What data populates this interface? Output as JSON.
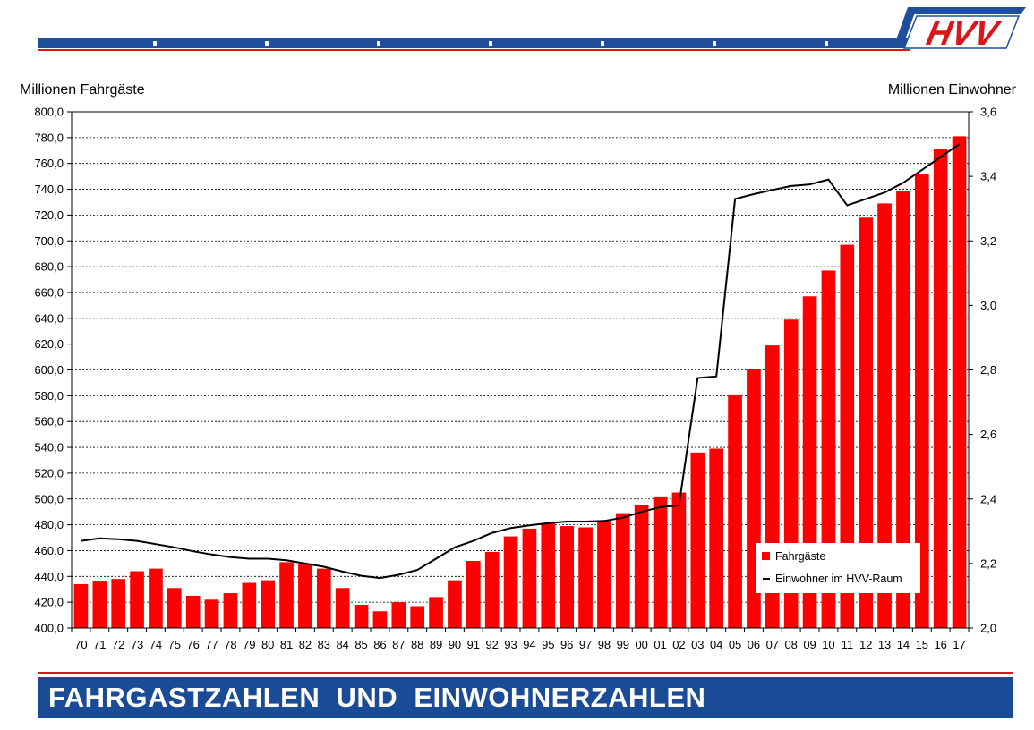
{
  "header": {
    "logo_text": "HVV"
  },
  "footer": {
    "title": "FAHRGASTZAHLEN  UND  EINWOHNERZAHLEN"
  },
  "colors": {
    "bars": "#ff0000",
    "line": "#000000",
    "brand_blue": "#1f4f9c",
    "brand_red": "#d9161c"
  },
  "chart_data": {
    "type": "bar",
    "xlabel": "",
    "ylabel": "Millionen Fahrgäste",
    "y2label": "Millionen Einwohner",
    "ylim": [
      400,
      800
    ],
    "y2lim": [
      2.0,
      3.6
    ],
    "yticks": [
      "400,0",
      "420,0",
      "440,0",
      "460,0",
      "480,0",
      "500,0",
      "520,0",
      "540,0",
      "560,0",
      "580,0",
      "600,0",
      "620,0",
      "640,0",
      "660,0",
      "680,0",
      "700,0",
      "720,0",
      "740,0",
      "760,0",
      "780,0",
      "800,0"
    ],
    "y2ticks": [
      "2,0",
      "2,2",
      "2,4",
      "2,6",
      "2,8",
      "3,0",
      "3,2",
      "3,4",
      "3,6"
    ],
    "grid": true,
    "legend_position": "bottom-right",
    "categories": [
      "70",
      "71",
      "72",
      "73",
      "74",
      "75",
      "76",
      "77",
      "78",
      "79",
      "80",
      "81",
      "82",
      "83",
      "84",
      "85",
      "86",
      "87",
      "88",
      "89",
      "90",
      "91",
      "92",
      "93",
      "94",
      "95",
      "96",
      "97",
      "98",
      "99",
      "00",
      "01",
      "02",
      "03",
      "04",
      "05",
      "06",
      "07",
      "08",
      "09",
      "10",
      "11",
      "12",
      "13",
      "14",
      "15",
      "16",
      "17"
    ],
    "series": [
      {
        "name": "Fahrgäste",
        "type": "bar",
        "axis": "left",
        "values": [
          434,
          436,
          438,
          444,
          446,
          431,
          425,
          422,
          427,
          435,
          437,
          451,
          450,
          446,
          431,
          418,
          413,
          420,
          417,
          424,
          437,
          452,
          459,
          471,
          477,
          481,
          479,
          478,
          483,
          489,
          495,
          502,
          505,
          536,
          539,
          581,
          601,
          619,
          639,
          657,
          677,
          697,
          718,
          729,
          739,
          752,
          771,
          781
        ]
      },
      {
        "name": "Einwohner im HVV-Raum",
        "type": "line",
        "axis": "right",
        "values": [
          2.27,
          2.278,
          2.275,
          2.27,
          2.26,
          2.25,
          2.238,
          2.228,
          2.22,
          2.215,
          2.215,
          2.21,
          2.2,
          2.19,
          2.175,
          2.162,
          2.155,
          2.165,
          2.18,
          2.215,
          2.25,
          2.27,
          2.295,
          2.31,
          2.318,
          2.325,
          2.33,
          2.33,
          2.332,
          2.342,
          2.36,
          2.375,
          2.38,
          2.775,
          2.78,
          3.33,
          3.345,
          3.358,
          3.37,
          3.375,
          3.39,
          3.31,
          3.33,
          3.35,
          3.38,
          3.42,
          3.46,
          3.5
        ]
      }
    ]
  }
}
